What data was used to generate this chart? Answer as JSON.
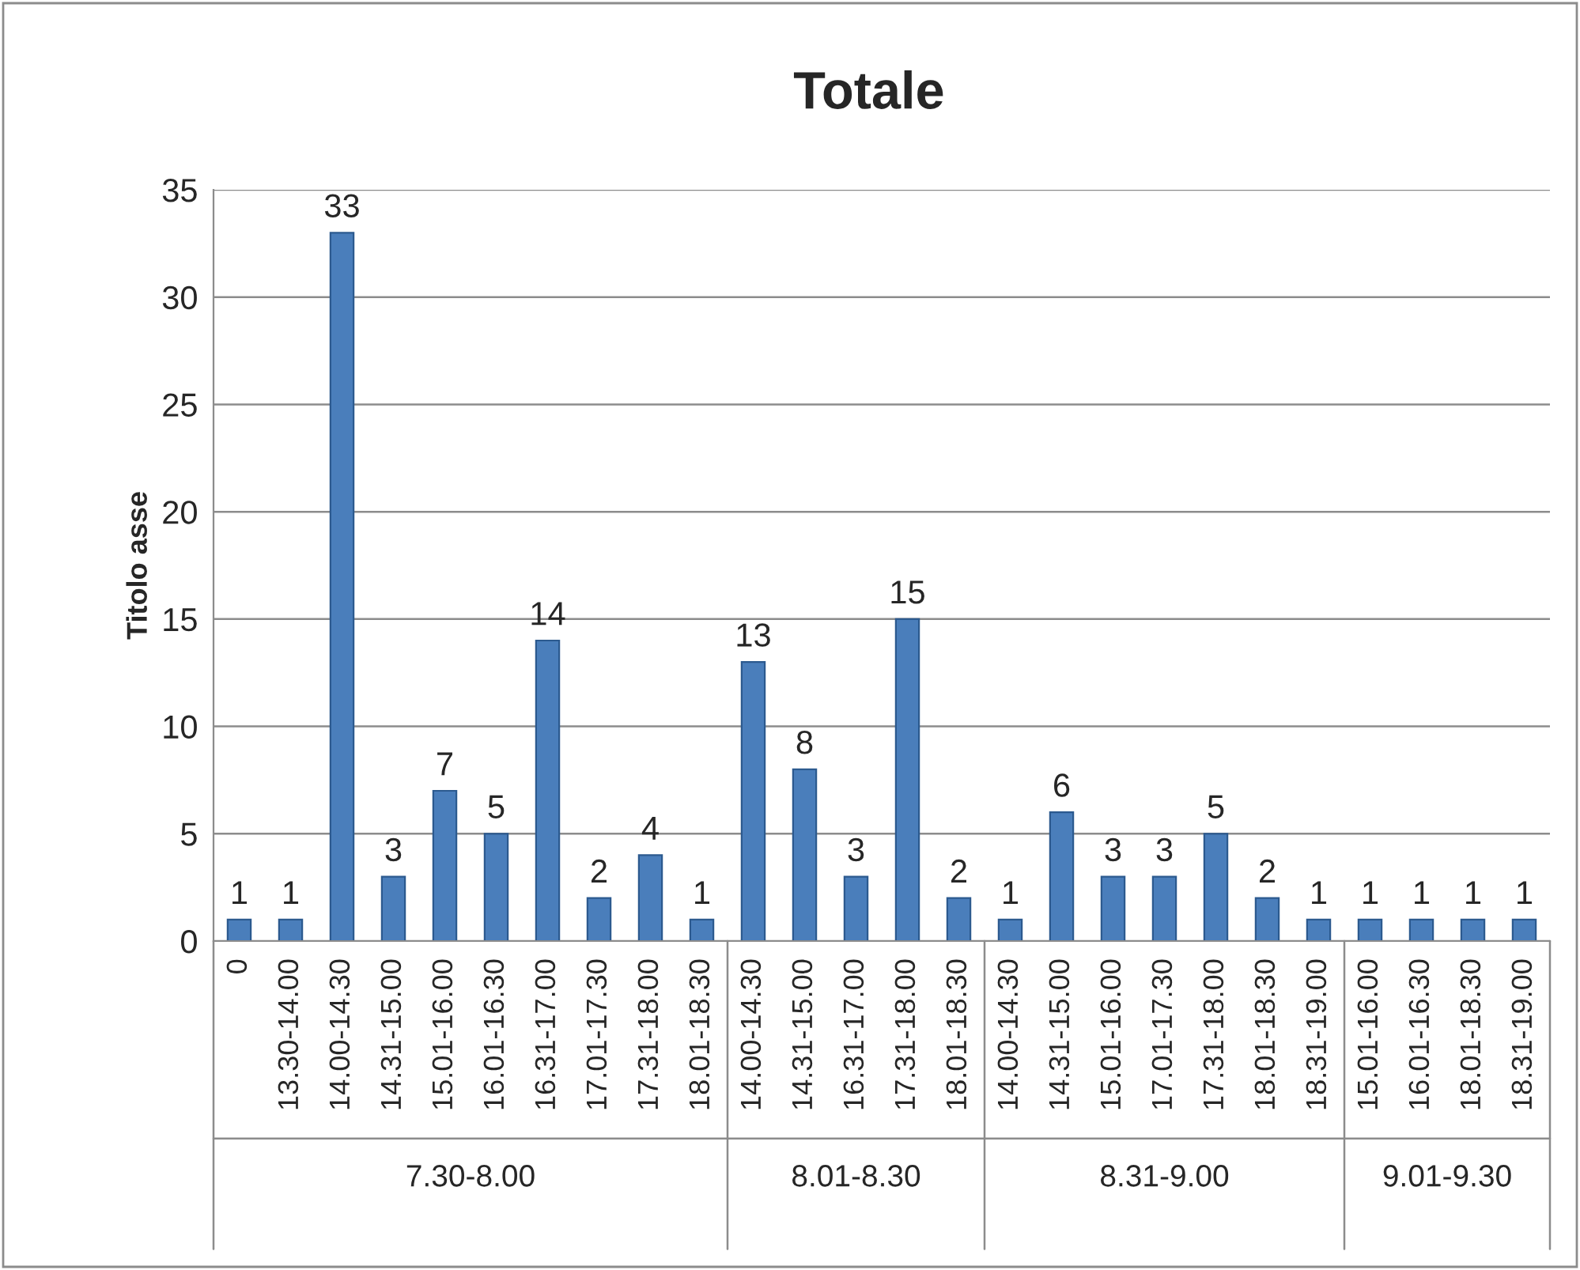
{
  "chart_data": {
    "type": "bar",
    "title": "Totale",
    "ylabel": "Titolo asse",
    "categories": [
      "0",
      "13.30-14.00",
      "14.00-14.30",
      "14.31-15.00",
      "15.01-16.00",
      "16.01-16.30",
      "16.31-17.00",
      "17.01-17.30",
      "17.31-18.00",
      "18.01-18.30",
      "14.00-14.30",
      "14.31-15.00",
      "16.31-17.00",
      "17.31-18.00",
      "18.01-18.30",
      "14.00-14.30",
      "14.31-15.00",
      "15.01-16.00",
      "17.01-17.30",
      "17.31-18.00",
      "18.01-18.30",
      "18.31-19.00",
      "15.01-16.00",
      "16.01-16.30",
      "18.01-18.30",
      "18.31-19.00"
    ],
    "values": [
      1,
      1,
      33,
      3,
      7,
      5,
      14,
      2,
      4,
      1,
      13,
      8,
      3,
      15,
      2,
      1,
      6,
      3,
      3,
      5,
      2,
      1,
      1,
      1,
      1,
      1
    ],
    "color": "#4a7ebb",
    "ylim": [
      0,
      35
    ],
    "yticks": [
      0,
      5,
      10,
      15,
      20,
      25,
      30,
      35
    ],
    "grid": "y",
    "data_labels": true,
    "legend": false,
    "annotations": [
      "7.30-8.00",
      "8.01-8.30",
      "8.31-9.00",
      "9.01-9.30"
    ]
  }
}
